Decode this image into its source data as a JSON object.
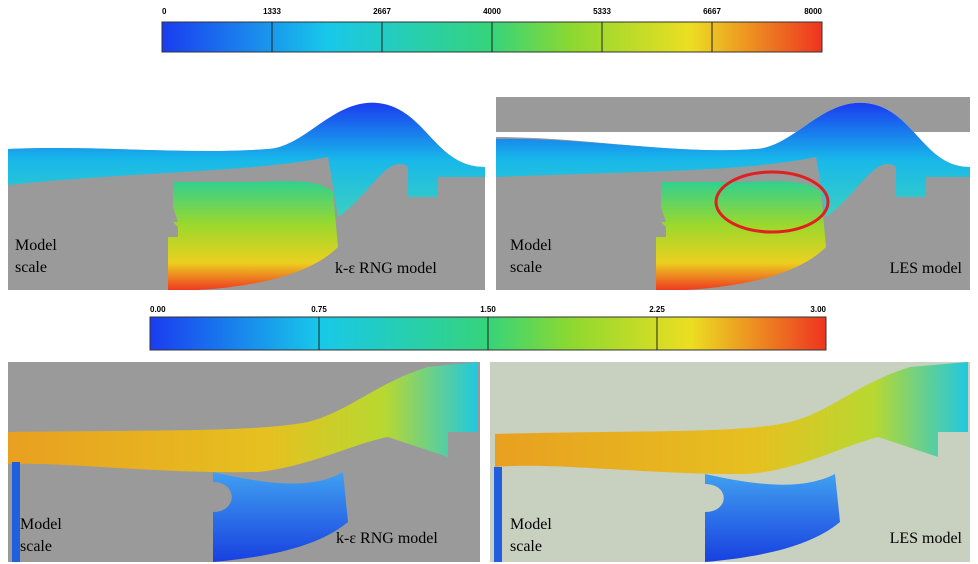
{
  "colorbar_top": {
    "ticks": [
      "0",
      "1333",
      "2667",
      "4000",
      "5333",
      "6667",
      "8000"
    ]
  },
  "colorbar_bottom": {
    "ticks": [
      "0.00",
      "0.75",
      "1.50",
      "2.25",
      "3.00"
    ]
  },
  "panels": [
    {
      "label_lines": [
        "Model",
        "scale"
      ],
      "model": "k-ε RNG model"
    },
    {
      "label_lines": [
        "Model",
        "scale"
      ],
      "model": "LES model"
    },
    {
      "label_lines": [
        "Model",
        "scale"
      ],
      "model": "k-ε RNG model"
    },
    {
      "label_lines": [
        "Model",
        "scale"
      ],
      "model": "LES model"
    }
  ]
}
